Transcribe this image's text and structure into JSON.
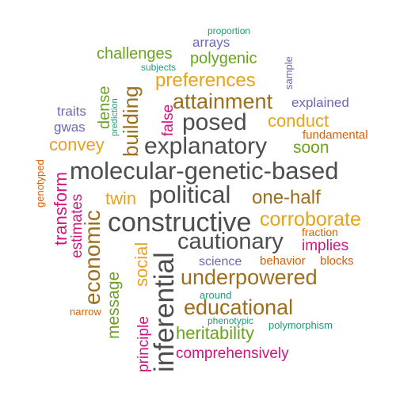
{
  "colors": {
    "gray": "#4d4d4d",
    "orange": "#e6a31b",
    "brown": "#9c6e1e",
    "green": "#6aa321",
    "teal": "#1b9e77",
    "purple": "#6f67b5",
    "magenta": "#d0157f",
    "darkorange": "#d85f02"
  },
  "words": {
    "molecular_genetic_based": "molecular-genetic-based",
    "constructive": "constructive",
    "political": "political",
    "explanatory": "explanatory",
    "cautionary": "cautionary",
    "inferential": "inferential",
    "posed": "posed",
    "attainment": "attainment",
    "underpowered": "underpowered",
    "educational": "educational",
    "economic": "economic",
    "corroborate": "corroborate",
    "preferences": "preferences",
    "one_half": "one-half",
    "building": "building",
    "heritability": "heritability",
    "conduct": "conduct",
    "convey": "convey",
    "twin": "twin",
    "comprehensively": "comprehensively",
    "transform": "transform",
    "estimates": "estimates",
    "message": "message",
    "social": "social",
    "challenges": "challenges",
    "polygenic": "polygenic",
    "principle": "principle",
    "soon": "soon",
    "implies": "implies",
    "dense": "dense",
    "arrays": "arrays",
    "explained": "explained",
    "false": "false",
    "science": "science",
    "behavior": "behavior",
    "blocks": "blocks",
    "fundamental": "fundamental",
    "fraction": "fraction",
    "traits": "traits",
    "gwas": "gwas",
    "sample": "sample",
    "proportion": "proportion",
    "subjects": "subjects",
    "prediction": "prediction",
    "genotyped": "genotyped",
    "narrow": "narrow",
    "around": "around",
    "phenotypic": "phenotypic",
    "polymorphism": "polymorphism"
  }
}
